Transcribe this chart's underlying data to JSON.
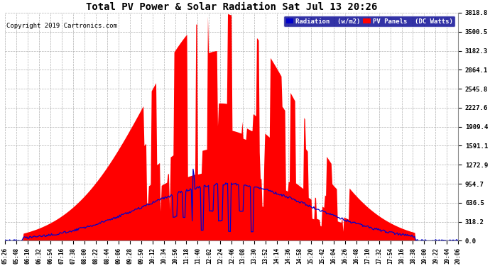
{
  "title": "Total PV Power & Solar Radiation Sat Jul 13 20:26",
  "copyright": "Copyright 2019 Cartronics.com",
  "background_color": "#ffffff",
  "plot_bg_color": "#ffffff",
  "grid_color": "#b0b0b0",
  "yticks": [
    0.0,
    318.2,
    636.5,
    954.7,
    1272.9,
    1591.1,
    1909.4,
    2227.6,
    2545.8,
    2864.1,
    3182.3,
    3500.5,
    3818.8
  ],
  "ymax": 3818.8,
  "legend_radiation_label": "Radiation  (w/m2)",
  "legend_pv_label": "PV Panels  (DC Watts)",
  "pv_color": "#ff0000",
  "radiation_color": "#0000cc",
  "tick_labels": [
    "05:26",
    "05:48",
    "06:10",
    "06:32",
    "06:54",
    "07:16",
    "07:38",
    "08:00",
    "08:22",
    "08:44",
    "09:06",
    "09:28",
    "09:50",
    "10:12",
    "10:34",
    "10:56",
    "11:18",
    "11:40",
    "12:02",
    "12:24",
    "12:46",
    "13:08",
    "13:30",
    "13:52",
    "14:14",
    "14:36",
    "14:58",
    "15:20",
    "15:42",
    "16:04",
    "16:26",
    "16:48",
    "17:10",
    "17:32",
    "17:54",
    "18:16",
    "18:38",
    "19:00",
    "19:22",
    "19:44",
    "20:06"
  ]
}
